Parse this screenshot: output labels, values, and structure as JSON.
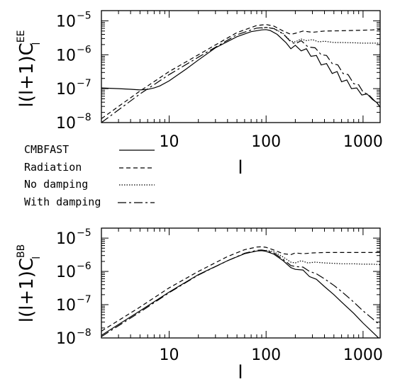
{
  "colors": {
    "ink": "#000000",
    "background": "#ffffff"
  },
  "legend": {
    "items": [
      {
        "label": "CMBFAST",
        "dash": "solid"
      },
      {
        "label": "Radiation",
        "dash": "dashed"
      },
      {
        "label": "No damping",
        "dash": "dotted"
      },
      {
        "label": "With damping",
        "dash": "longdash"
      }
    ]
  },
  "chart_data": [
    {
      "type": "line",
      "ylabel": {
        "base": "l(l+1)C",
        "sup": "EE",
        "sub": "l"
      },
      "xlabel": "l",
      "xscale": "log",
      "yscale": "log",
      "xlim": [
        2,
        1500
      ],
      "ylim": [
        1e-08,
        2e-05
      ],
      "xtick_labels": [
        "10",
        "100",
        "1000"
      ],
      "xticks": [
        10,
        100,
        1000
      ],
      "ytick_labels": [
        [
          "10",
          "−8"
        ],
        [
          "10",
          "−7"
        ],
        [
          "10",
          "−6"
        ],
        [
          "10",
          "−5"
        ]
      ],
      "yticks": [
        1e-08,
        1e-07,
        1e-06,
        1e-05
      ],
      "series": [
        {
          "name": "CMBFAST",
          "dash": "solid",
          "x": [
            2,
            3,
            4,
            5,
            6,
            7,
            8,
            10,
            15,
            20,
            30,
            50,
            70,
            90,
            100,
            110,
            130,
            160,
            180,
            200,
            230,
            260,
            290,
            330,
            370,
            420,
            480,
            540,
            600,
            680,
            760,
            860,
            970,
            1100,
            1250,
            1400,
            1500
          ],
          "y": [
            1.05e-07,
            1e-07,
            9.6e-08,
            9.2e-08,
            9.5e-08,
            1.05e-07,
            1.2e-07,
            1.7e-07,
            3.8e-07,
            7e-07,
            1.6e-06,
            3.4e-06,
            4.8e-06,
            5.4e-06,
            5.5e-06,
            5.2e-06,
            4e-06,
            2.3e-06,
            1.5e-06,
            1.9e-06,
            1.3e-06,
            1.5e-06,
            9e-07,
            9.5e-07,
            5e-07,
            5.5e-07,
            2.8e-07,
            3.2e-07,
            1.6e-07,
            1.8e-07,
            1e-07,
            1.05e-07,
            6.5e-08,
            7e-08,
            4.8e-08,
            3.8e-08,
            2.8e-08
          ]
        },
        {
          "name": "Radiation",
          "dash": "dashed",
          "x": [
            2,
            5,
            10,
            20,
            50,
            80,
            100,
            120,
            150,
            180,
            200,
            240,
            300,
            400,
            600,
            800,
            1000,
            1250,
            1500
          ],
          "y": [
            1.3e-08,
            8.5e-08,
            3.2e-07,
            1e-06,
            4.5e-06,
            7.3e-06,
            7.8e-06,
            7e-06,
            5e-06,
            4e-06,
            4.3e-06,
            5e-06,
            4.6e-06,
            5e-06,
            5.1e-06,
            5.2e-06,
            5.3e-06,
            5.4e-06,
            5.6e-06
          ]
        },
        {
          "name": "No damping",
          "dash": "dotted",
          "x": [
            90,
            100,
            120,
            150,
            180,
            200,
            230,
            260,
            300,
            350,
            400,
            500,
            600,
            800,
            1000,
            1250,
            1500
          ],
          "y": [
            6.1e-06,
            6.4e-06,
            6e-06,
            4.2e-06,
            2.5e-06,
            2.4e-06,
            2.9e-06,
            2.6e-06,
            2.8e-06,
            2.4e-06,
            2.5e-06,
            2.3e-06,
            2.3e-06,
            2.25e-06,
            2.2e-06,
            2.2e-06,
            2.2e-06
          ]
        },
        {
          "name": "With damping",
          "dash": "longdash",
          "x": [
            2,
            5,
            10,
            20,
            50,
            80,
            100,
            120,
            150,
            180,
            200,
            230,
            270,
            320,
            370,
            420,
            480,
            550,
            620,
            700,
            800,
            900,
            1000,
            1150,
            1300,
            1500
          ],
          "y": [
            1e-08,
            7e-08,
            2.6e-07,
            8.5e-07,
            3.9e-06,
            6.1e-06,
            6.4e-06,
            5.9e-06,
            4.1e-06,
            2.4e-06,
            2.1e-06,
            2.6e-06,
            1.7e-06,
            1.6e-06,
            1e-06,
            9.5e-07,
            5.5e-07,
            5e-07,
            2.8e-07,
            2.6e-07,
            1.4e-07,
            1.3e-07,
            8e-08,
            6.5e-08,
            4.5e-08,
            3e-08
          ]
        }
      ]
    },
    {
      "type": "line",
      "ylabel": {
        "base": "l(l+1)C",
        "sup": "BB",
        "sub": "l"
      },
      "xlabel": "l",
      "xscale": "log",
      "yscale": "log",
      "xlim": [
        2,
        1500
      ],
      "ylim": [
        1e-08,
        2e-05
      ],
      "xtick_labels": [
        "10",
        "100",
        "1000"
      ],
      "xticks": [
        10,
        100,
        1000
      ],
      "ytick_labels": [
        [
          "10",
          "−8"
        ],
        [
          "10",
          "−7"
        ],
        [
          "10",
          "−6"
        ],
        [
          "10",
          "−5"
        ]
      ],
      "yticks": [
        1e-08,
        1e-07,
        1e-06,
        1e-05
      ],
      "series": [
        {
          "name": "CMBFAST",
          "dash": "solid",
          "x": [
            2,
            5,
            10,
            20,
            40,
            60,
            80,
            90,
            100,
            120,
            150,
            180,
            200,
            240,
            280,
            330,
            400,
            500,
            600,
            800,
            1000,
            1250,
            1500
          ],
          "y": [
            1.2e-08,
            6.5e-08,
            2.4e-07,
            8e-07,
            2.1e-06,
            3.4e-06,
            4.1e-06,
            4.2e-06,
            4e-06,
            3.3e-06,
            2.1e-06,
            1.3e-06,
            1.15e-06,
            1.1e-06,
            7e-07,
            5.8e-07,
            3.5e-07,
            2e-07,
            1.2e-07,
            5.5e-08,
            2.8e-08,
            1.5e-08,
            9e-09
          ]
        },
        {
          "name": "Radiation",
          "dash": "dashed",
          "x": [
            2,
            5,
            10,
            20,
            40,
            60,
            80,
            90,
            100,
            120,
            150,
            180,
            200,
            240,
            300,
            400,
            600,
            800,
            1000,
            1250,
            1500
          ],
          "y": [
            1.6e-08,
            8.5e-08,
            3.2e-07,
            1e-06,
            2.8e-06,
            4.5e-06,
            5.4e-06,
            5.5e-06,
            5.3e-06,
            4.4e-06,
            3.4e-06,
            3.2e-06,
            3.6e-06,
            3.4e-06,
            3.6e-06,
            3.7e-06,
            3.7e-06,
            3.7e-06,
            3.7e-06,
            3.7e-06,
            3.7e-06
          ]
        },
        {
          "name": "No damping",
          "dash": "dotted",
          "x": [
            100,
            120,
            150,
            180,
            200,
            230,
            270,
            320,
            400,
            500,
            600,
            800,
            1000,
            1250,
            1500
          ],
          "y": [
            4.3e-06,
            3.9e-06,
            2.7e-06,
            1.9e-06,
            1.8e-06,
            2.1e-06,
            1.8e-06,
            1.9e-06,
            1.8e-06,
            1.75e-06,
            1.7e-06,
            1.7e-06,
            1.65e-06,
            1.65e-06,
            1.6e-06
          ]
        },
        {
          "name": "With damping",
          "dash": "longdash",
          "x": [
            2,
            5,
            10,
            20,
            40,
            60,
            80,
            90,
            100,
            120,
            150,
            180,
            200,
            240,
            280,
            330,
            400,
            500,
            600,
            800,
            1000,
            1250,
            1500
          ],
          "y": [
            1.1e-08,
            6e-08,
            2.3e-07,
            7.8e-07,
            2.1e-06,
            3.5e-06,
            4.3e-06,
            4.4e-06,
            4.2e-06,
            3.6e-06,
            2.3e-06,
            1.5e-06,
            1.4e-06,
            1.35e-06,
            1e-06,
            8.5e-07,
            6e-07,
            3.8e-07,
            2.5e-07,
            1.2e-07,
            6.5e-08,
            3.8e-08,
            2.4e-08
          ]
        }
      ]
    }
  ]
}
